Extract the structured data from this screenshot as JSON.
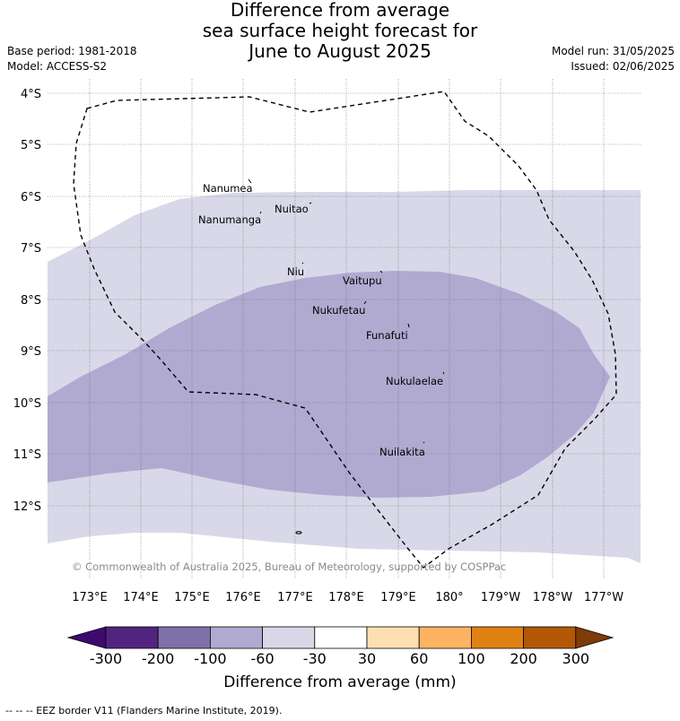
{
  "title": {
    "line1": "Difference from average",
    "line2": "sea surface height forecast for",
    "line3": "June to August 2025"
  },
  "meta_left": {
    "base_period": "Base period: 1981-2018",
    "model": "Model: ACCESS-S2"
  },
  "meta_right": {
    "model_run": "Model run: 31/05/2025",
    "issued": "Issued: 02/06/2025"
  },
  "map": {
    "lat_labels": [
      "4°S",
      "5°S",
      "6°S",
      "7°S",
      "8°S",
      "9°S",
      "10°S",
      "11°S",
      "12°S"
    ],
    "lon_labels": [
      "173°E",
      "174°E",
      "175°E",
      "176°E",
      "177°E",
      "178°E",
      "179°E",
      "180°",
      "179°W",
      "178°W",
      "177°W"
    ],
    "places": [
      {
        "name": "Nanumea"
      },
      {
        "name": "Nuitao"
      },
      {
        "name": "Nanumanga"
      },
      {
        "name": "Niu"
      },
      {
        "name": "Vaitupu"
      },
      {
        "name": "Nukufetau"
      },
      {
        "name": "Funafuti"
      },
      {
        "name": "Nukulaelae"
      },
      {
        "name": "Nuilakita"
      }
    ],
    "copyright": "© Commonwealth of Australia 2025, Bureau of Meteorology, supported by COSPPac",
    "colors": {
      "band_-60_-30": "#d8d8e9",
      "band_-100_-60": "#b0aad1",
      "eez": "#000000"
    }
  },
  "colorbar": {
    "title": "Difference from average (mm)",
    "ticks": [
      "-300",
      "-200",
      "-100",
      "-60",
      "-30",
      "30",
      "60",
      "100",
      "200",
      "300"
    ],
    "colors": [
      "#3f0a6f",
      "#53247f",
      "#7f70aa",
      "#b0aad1",
      "#d8d8e9",
      "#ffffff",
      "#fddfb2",
      "#fdb462",
      "#e08213",
      "#b35806",
      "#7f3b08"
    ]
  },
  "footer": "-- -- -- EEZ border V11 (Flanders Marine Institute, 2019)."
}
